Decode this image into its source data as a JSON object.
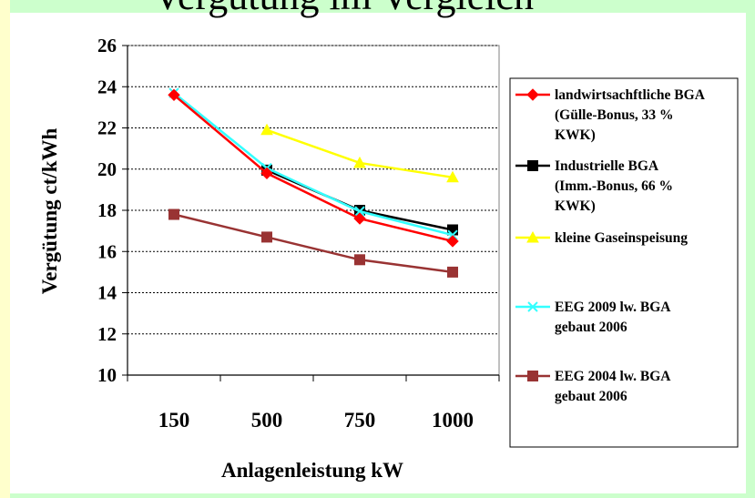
{
  "page": {
    "title_fragment": "Vergütung im Vergleich"
  },
  "chart_data": {
    "type": "line",
    "categories": [
      "150",
      "500",
      "750",
      "1000"
    ],
    "xlabel": "Anlagenleistung kW",
    "ylabel": "Vergütung ct/kWh",
    "ylim": [
      10,
      26
    ],
    "yticks": [
      "10",
      "12",
      "14",
      "16",
      "18",
      "20",
      "22",
      "24",
      "26"
    ],
    "grid": "horizontal dashed",
    "legend_position": "right",
    "series": [
      {
        "name_lines": [
          "landwirtsachftliche BGA",
          "(Gülle-Bonus, 33 %",
          "KWK)"
        ],
        "values": [
          23.6,
          19.8,
          17.6,
          16.5
        ],
        "color": "#ff0000",
        "marker": "diamond"
      },
      {
        "name_lines": [
          "Industrielle BGA",
          "(Imm.-Bonus, 66 %",
          "KWK)"
        ],
        "values": [
          null,
          19.95,
          18.0,
          17.05
        ],
        "color": "#000000",
        "marker": "square"
      },
      {
        "name_lines": [
          "kleine Gaseinspeisung"
        ],
        "values": [
          null,
          21.9,
          20.3,
          19.6
        ],
        "color": "#ffff00",
        "marker": "triangle"
      },
      {
        "name_lines": [
          "EEG 2009 lw. BGA",
          "gebaut 2006"
        ],
        "values": [
          23.7,
          20.05,
          17.95,
          16.8
        ],
        "color": "#33ffff",
        "marker": "x"
      },
      {
        "name_lines": [
          "EEG 2004 lw. BGA",
          "gebaut 2006"
        ],
        "values": [
          17.8,
          16.7,
          15.6,
          15.0
        ],
        "color": "#993333",
        "marker": "square"
      }
    ]
  }
}
